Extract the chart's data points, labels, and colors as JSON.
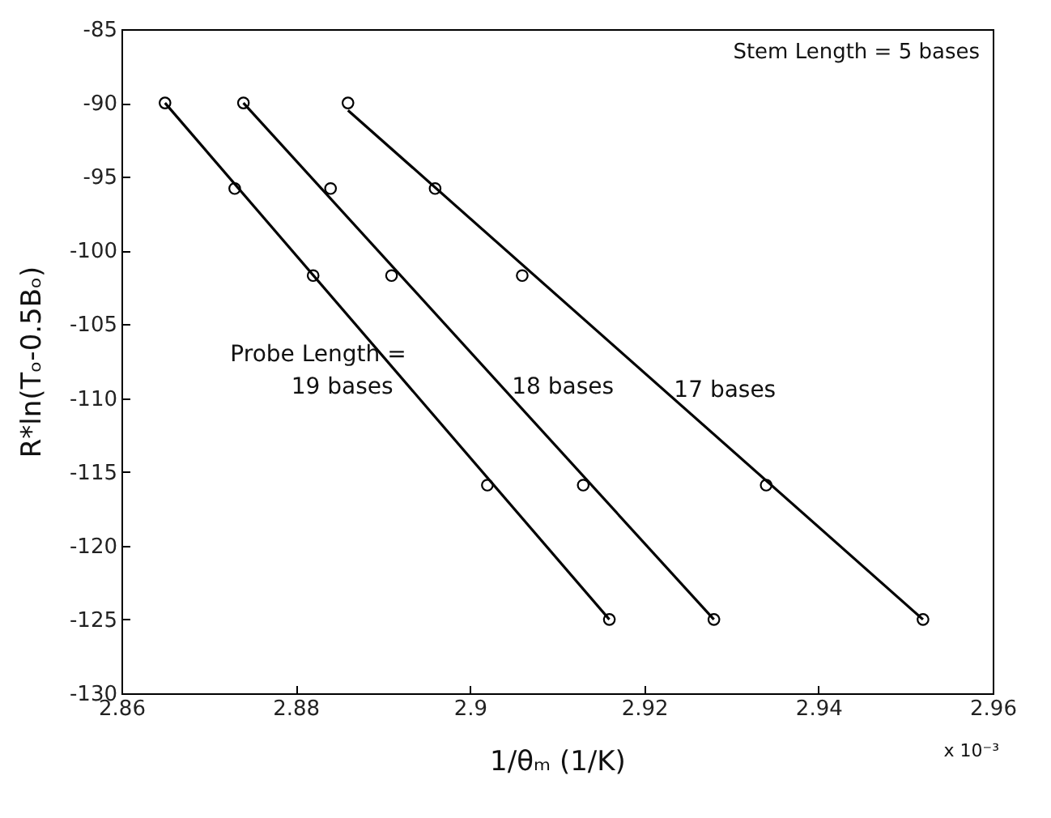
{
  "chart_data": {
    "type": "scatter",
    "xlabel": "1/θₘ (1/K)",
    "ylabel": "R*ln(Tₒ-0.5Bₒ)",
    "annotations": [
      "Stem Length = 5 bases",
      "Probe Length =",
      "x 10⁻³"
    ],
    "xlim": [
      2.86,
      2.96
    ],
    "xticks": [
      2.86,
      2.88,
      2.9,
      2.92,
      2.94,
      2.96
    ],
    "ylim": [
      -130,
      -85
    ],
    "yticks": [
      -130,
      -125,
      -120,
      -115,
      -110,
      -105,
      -100,
      -95,
      -90,
      -85
    ],
    "grid": false,
    "marker": "circle",
    "series": [
      {
        "color": "#000000",
        "x": [
          2.865,
          2.873,
          2.882,
          2.902,
          2.916
        ],
        "values": [
          -90,
          -95.8,
          -101.7,
          -115.9,
          -125
        ]
      },
      {
        "color": "#000000",
        "x": [
          2.874,
          2.884,
          2.891,
          2.913,
          2.928
        ],
        "values": [
          -90,
          -95.8,
          -101.7,
          -115.9,
          -125
        ]
      },
      {
        "color": "#000000",
        "x": [
          2.886,
          2.896,
          2.906,
          2.934,
          2.952
        ],
        "values": [
          -90,
          -95.8,
          -101.7,
          -115.9,
          -125
        ]
      },
      {
        "type": "line",
        "marker": "none",
        "name": "19 bases",
        "color": "#000000",
        "x": [
          2.865,
          2.916
        ],
        "values": [
          -90,
          -125
        ]
      },
      {
        "type": "line",
        "marker": "none",
        "name": "18 bases",
        "color": "#000000",
        "x": [
          2.874,
          2.928
        ],
        "values": [
          -90,
          -125
        ]
      },
      {
        "type": "line",
        "marker": "none",
        "name": "17 bases",
        "color": "#000000",
        "x": [
          2.886,
          2.952
        ],
        "values": [
          -90.5,
          -125
        ]
      }
    ]
  }
}
